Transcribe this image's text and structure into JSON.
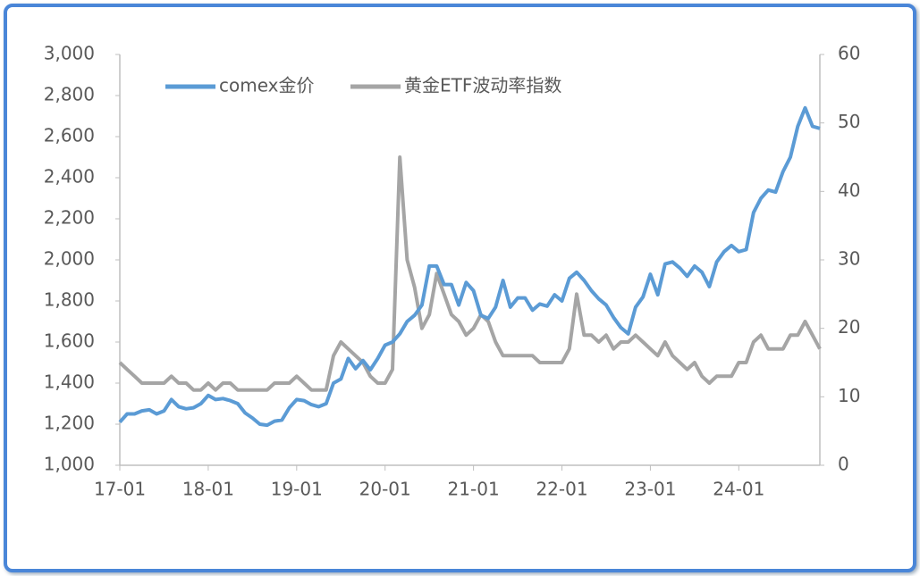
{
  "chart_data": {
    "type": "line",
    "categories": [
      "17-01",
      null,
      null,
      null,
      null,
      null,
      null,
      null,
      null,
      null,
      null,
      null,
      "18-01",
      null,
      null,
      null,
      null,
      null,
      null,
      null,
      null,
      null,
      null,
      null,
      "19-01",
      null,
      null,
      null,
      null,
      null,
      null,
      null,
      null,
      null,
      null,
      null,
      "20-01",
      null,
      null,
      null,
      null,
      null,
      null,
      null,
      null,
      null,
      null,
      null,
      "21-01",
      null,
      null,
      null,
      null,
      null,
      null,
      null,
      null,
      null,
      null,
      null,
      "22-01",
      null,
      null,
      null,
      null,
      null,
      null,
      null,
      null,
      null,
      null,
      null,
      "23-01",
      null,
      null,
      null,
      null,
      null,
      null,
      null,
      null,
      null,
      null,
      null,
      "24-01",
      null,
      null,
      null,
      null,
      null,
      null,
      null,
      null,
      null,
      null,
      null
    ],
    "series": [
      {
        "name": "comex金价",
        "color": "#5b9bd5",
        "values": [
          1210,
          1250,
          1250,
          1265,
          1270,
          1250,
          1265,
          1320,
          1285,
          1275,
          1280,
          1300,
          1340,
          1320,
          1325,
          1315,
          1300,
          1255,
          1230,
          1200,
          1195,
          1215,
          1220,
          1280,
          1320,
          1315,
          1295,
          1285,
          1300,
          1400,
          1420,
          1520,
          1470,
          1510,
          1465,
          1520,
          1585,
          1600,
          1640,
          1700,
          1730,
          1780,
          1970,
          1970,
          1880,
          1880,
          1780,
          1890,
          1850,
          1730,
          1715,
          1770,
          1900,
          1770,
          1815,
          1815,
          1755,
          1785,
          1775,
          1830,
          1800,
          1910,
          1940,
          1900,
          1850,
          1810,
          1780,
          1720,
          1670,
          1640,
          1770,
          1820,
          1930,
          1830,
          1980,
          1990,
          1960,
          1920,
          1970,
          1940,
          1870,
          1990,
          2040,
          2070,
          2040,
          2050,
          2230,
          2300,
          2340,
          2330,
          2430,
          2500,
          2650,
          2740,
          2650,
          2640
        ]
      },
      {
        "name": "黄金ETF波动率指数",
        "color": "#a5a5a5",
        "axis": "y2",
        "values": [
          15,
          14,
          13,
          12,
          12,
          12,
          12,
          13,
          12,
          12,
          11,
          11,
          12,
          11,
          12,
          12,
          11,
          11,
          11,
          11,
          11,
          12,
          12,
          12,
          13,
          12,
          11,
          11,
          11,
          16,
          18,
          17,
          16,
          15,
          13,
          12,
          12,
          14,
          45,
          30,
          26,
          20,
          22,
          28,
          25,
          22,
          21,
          19,
          20,
          22,
          21,
          18,
          16,
          16,
          16,
          16,
          16,
          15,
          15,
          15,
          15,
          17,
          25,
          19,
          19,
          18,
          19,
          17,
          18,
          18,
          19,
          18,
          17,
          16,
          18,
          16,
          15,
          14,
          15,
          13,
          12,
          13,
          13,
          13,
          15,
          15,
          18,
          19,
          17,
          17,
          17,
          19,
          19,
          21,
          19,
          17
        ]
      }
    ],
    "ylim": [
      1000,
      3000
    ],
    "yticks": [
      {
        "value": 1000,
        "label": "1,000"
      },
      {
        "value": 1200,
        "label": "1,200"
      },
      {
        "value": 1400,
        "label": "1,400"
      },
      {
        "value": 1600,
        "label": "1,600"
      },
      {
        "value": 1800,
        "label": "1,800"
      },
      {
        "value": 2000,
        "label": "2,000"
      },
      {
        "value": 2200,
        "label": "2,200"
      },
      {
        "value": 2400,
        "label": "2,400"
      },
      {
        "value": 2600,
        "label": "2,600"
      },
      {
        "value": 2800,
        "label": "2,800"
      },
      {
        "value": 3000,
        "label": "3,000"
      }
    ],
    "y2lim": [
      0,
      60
    ],
    "y2ticks": [
      0,
      10,
      20,
      30,
      40,
      50,
      60
    ],
    "legend": "top",
    "grid": false
  }
}
